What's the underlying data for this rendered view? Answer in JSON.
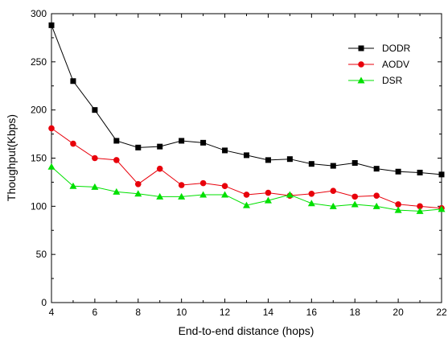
{
  "chart_data": {
    "type": "line",
    "xlabel": "End-to-end distance (hops)",
    "ylabel": "Thoughput(Kbps)",
    "xlim": [
      4,
      22
    ],
    "ylim": [
      0,
      300
    ],
    "xticks": [
      4,
      6,
      8,
      10,
      12,
      14,
      16,
      18,
      20,
      22
    ],
    "yticks": [
      0,
      50,
      100,
      150,
      200,
      250,
      300
    ],
    "grid": false,
    "legend_position": "top-right",
    "x": [
      4,
      5,
      6,
      7,
      8,
      9,
      10,
      11,
      12,
      13,
      14,
      15,
      16,
      17,
      18,
      19,
      20,
      21,
      22
    ],
    "series": [
      {
        "name": "DODR",
        "color": "#000000",
        "marker": "square",
        "values": [
          288,
          230,
          200,
          168,
          161,
          162,
          168,
          166,
          158,
          153,
          148,
          149,
          144,
          142,
          145,
          139,
          136,
          135,
          133
        ]
      },
      {
        "name": "AODV",
        "color": "#e8000b",
        "marker": "circle",
        "values": [
          181,
          165,
          150,
          148,
          123,
          139,
          122,
          124,
          121,
          112,
          114,
          111,
          113,
          116,
          110,
          111,
          102,
          100,
          98
        ]
      },
      {
        "name": "DSR",
        "color": "#00e000",
        "marker": "triangle",
        "values": [
          141,
          121,
          120,
          115,
          113,
          110,
          110,
          112,
          112,
          101,
          106,
          112,
          103,
          100,
          102,
          100,
          96,
          95,
          97
        ]
      }
    ]
  }
}
